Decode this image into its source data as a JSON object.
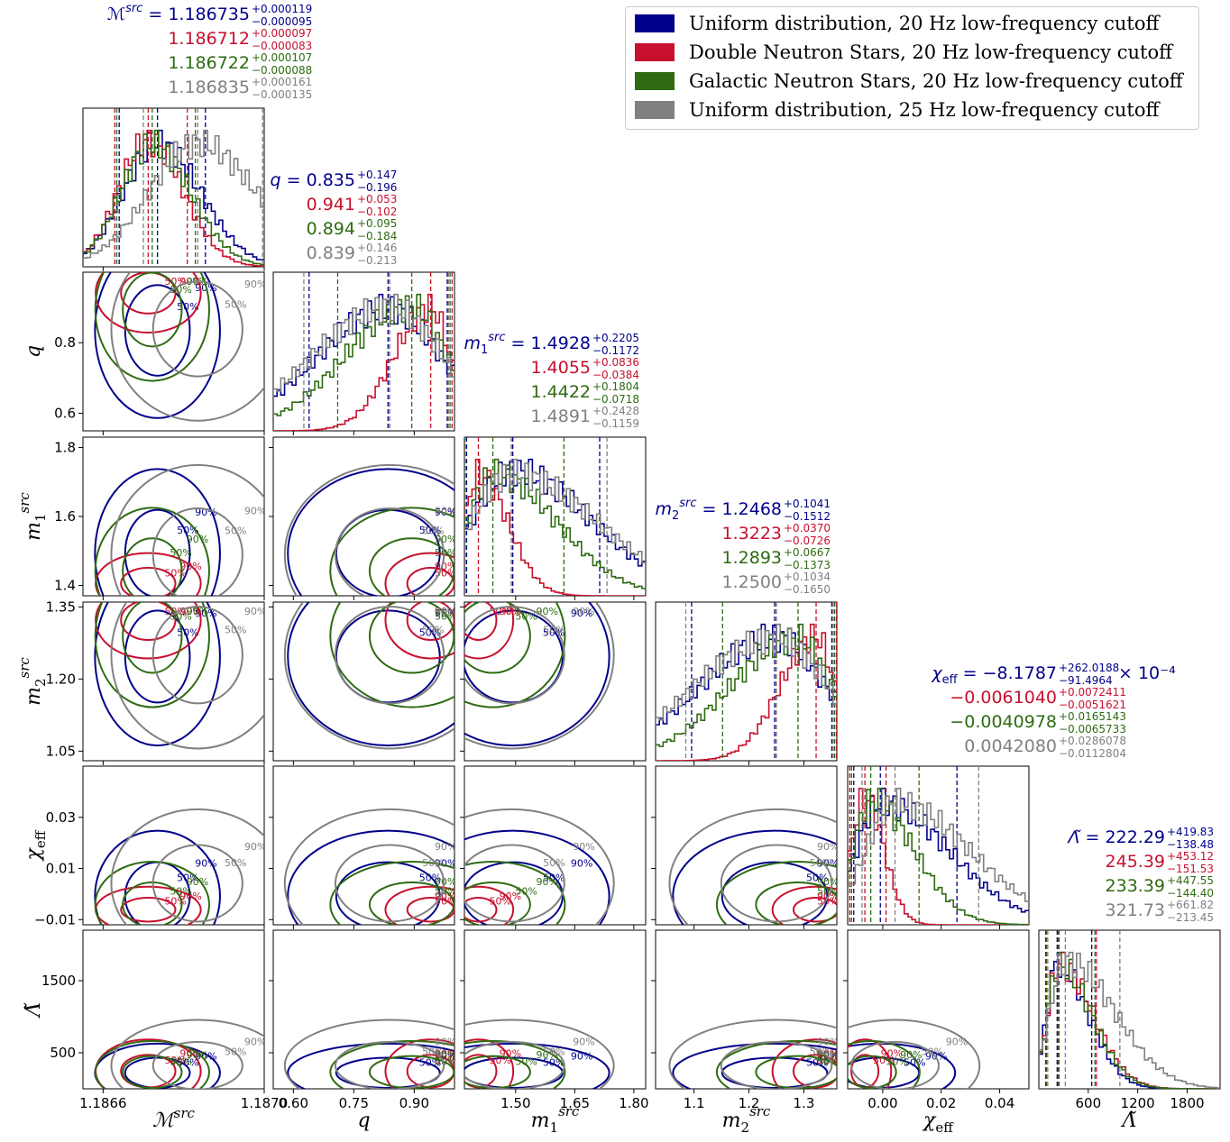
{
  "colors": {
    "uniform_20hz": "#00008b",
    "dns_20hz": "#c8102e",
    "galactic_20hz": "#2e6b12",
    "uniform_25hz": "#808080"
  },
  "legend": {
    "placement": "top-right",
    "items": [
      {
        "label": "Uniform distribution, 20 Hz low-frequency cutoff",
        "color": "#00008b"
      },
      {
        "label": "Double Neutron Stars, 20 Hz low-frequency cutoff",
        "color": "#c8102e"
      },
      {
        "label": "Galactic Neutron Stars, 20 Hz low-frequency cutoff",
        "color": "#2e6b12"
      },
      {
        "label": "Uniform distribution, 25 Hz low-frequency cutoff",
        "color": "#808080"
      }
    ]
  },
  "chart_data": {
    "type": "corner",
    "parameters": [
      {
        "key": "mc",
        "label": "ℳ",
        "sup": "src",
        "sub": "",
        "range": [
          1.18655,
          1.187
        ],
        "ticks": [
          1.1866,
          1.187
        ],
        "tick_labels": [
          "1.1866",
          "1.1870"
        ]
      },
      {
        "key": "q",
        "label": "q",
        "sup": "",
        "sub": "",
        "range": [
          0.55,
          1.0
        ],
        "ticks": [
          0.6,
          0.75,
          0.9
        ],
        "tick_labels": [
          "0.60",
          "0.75",
          "0.90"
        ],
        "yticks": [
          0.6,
          0.8
        ],
        "ytick_labels": [
          "0.6",
          "0.8"
        ]
      },
      {
        "key": "m1",
        "label": "m",
        "sup": "src",
        "sub": "1",
        "range": [
          1.37,
          1.83
        ],
        "ticks": [
          1.5,
          1.65,
          1.8
        ],
        "tick_labels": [
          "1.50",
          "1.65",
          "1.80"
        ],
        "yticks": [
          1.4,
          1.6,
          1.8
        ],
        "ytick_labels": [
          "1.4",
          "1.6",
          "1.8"
        ]
      },
      {
        "key": "m2",
        "label": "m",
        "sup": "src",
        "sub": "2",
        "range": [
          1.03,
          1.36
        ],
        "ticks": [
          1.1,
          1.2,
          1.3
        ],
        "tick_labels": [
          "1.1",
          "1.2",
          "1.3"
        ],
        "yticks": [
          1.05,
          1.2,
          1.35
        ],
        "ytick_labels": [
          "1.05",
          "1.20",
          "1.35"
        ]
      },
      {
        "key": "chi",
        "label": "χ",
        "sup": "",
        "sub": "eff",
        "range": [
          -0.012,
          0.05
        ],
        "ticks": [
          0.0,
          0.02,
          0.04
        ],
        "tick_labels": [
          "0.00",
          "0.02",
          "0.04"
        ],
        "yticks": [
          -0.01,
          0.01,
          0.03
        ],
        "ytick_labels": [
          "−0.01",
          "0.01",
          "0.03"
        ]
      },
      {
        "key": "lam",
        "label": "Λ̃",
        "sup": "",
        "sub": "",
        "range": [
          0,
          2200
        ],
        "ticks": [
          600,
          1200,
          1800
        ],
        "tick_labels": [
          "600",
          "1200",
          "1800"
        ],
        "yticks": [
          500,
          1500
        ],
        "ytick_labels": [
          "500",
          "1500"
        ]
      }
    ],
    "series": [
      {
        "name": "Uniform distribution, 20 Hz low-frequency cutoff",
        "color": "#00008b",
        "medians": [
          1.186735,
          0.835,
          1.4928,
          1.2468,
          -0.00081787,
          222.29
        ],
        "plus": [
          0.000119,
          0.147,
          0.2205,
          0.1041,
          0.0262,
          419.83
        ],
        "minus": [
          9.5e-05,
          0.196,
          0.1172,
          0.1512,
          0.0091,
          138.48
        ]
      },
      {
        "name": "Double Neutron Stars, 20 Hz low-frequency cutoff",
        "color": "#c8102e",
        "medians": [
          1.186712,
          0.941,
          1.4055,
          1.3223,
          -0.006104,
          245.39
        ],
        "plus": [
          9.7e-05,
          0.053,
          0.0836,
          0.037,
          0.0072411,
          453.12
        ],
        "minus": [
          8.3e-05,
          0.102,
          0.0384,
          0.0726,
          0.0051621,
          151.53
        ]
      },
      {
        "name": "Galactic Neutron Stars, 20 Hz low-frequency cutoff",
        "color": "#2e6b12",
        "medians": [
          1.186722,
          0.894,
          1.4422,
          1.2893,
          -0.0040978,
          233.39
        ],
        "plus": [
          0.000107,
          0.095,
          0.1804,
          0.0667,
          0.0165143,
          447.55
        ],
        "minus": [
          8.8e-05,
          0.184,
          0.0718,
          0.1373,
          0.0065733,
          144.4
        ]
      },
      {
        "name": "Uniform distribution, 25 Hz low-frequency cutoff",
        "color": "#808080",
        "medians": [
          1.186835,
          0.839,
          1.4891,
          1.25,
          0.004208,
          321.73
        ],
        "plus": [
          0.000161,
          0.146,
          0.2428,
          0.1034,
          0.0286078,
          661.82
        ],
        "minus": [
          0.000135,
          0.213,
          0.1159,
          0.165,
          0.0112804,
          213.45
        ]
      }
    ],
    "summary_text": [
      [
        {
          "prefix": "ℳ",
          "sup": "src",
          "sub": "",
          "value": "1.186735",
          "plus": "+0.000119",
          "minus": "−0.000095"
        },
        {
          "value": "1.186712",
          "plus": "+0.000097",
          "minus": "−0.000083"
        },
        {
          "value": "1.186722",
          "plus": "+0.000107",
          "minus": "−0.000088"
        },
        {
          "value": "1.186835",
          "plus": "+0.000161",
          "minus": "−0.000135"
        }
      ],
      [
        {
          "prefix": "q",
          "sup": "",
          "sub": "",
          "value": "0.835",
          "plus": "+0.147",
          "minus": "−0.196"
        },
        {
          "value": "0.941",
          "plus": "+0.053",
          "minus": "−0.102"
        },
        {
          "value": "0.894",
          "plus": "+0.095",
          "minus": "−0.184"
        },
        {
          "value": "0.839",
          "plus": "+0.146",
          "minus": "−0.213"
        }
      ],
      [
        {
          "prefix": "m",
          "sup": "src",
          "sub": "1",
          "value": "1.4928",
          "plus": "+0.2205",
          "minus": "−0.1172"
        },
        {
          "value": "1.4055",
          "plus": "+0.0836",
          "minus": "−0.0384"
        },
        {
          "value": "1.4422",
          "plus": "+0.1804",
          "minus": "−0.0718"
        },
        {
          "value": "1.4891",
          "plus": "+0.2428",
          "minus": "−0.1159"
        }
      ],
      [
        {
          "prefix": "m",
          "sup": "src",
          "sub": "2",
          "value": "1.2468",
          "plus": "+0.1041",
          "minus": "−0.1512"
        },
        {
          "value": "1.3223",
          "plus": "+0.0370",
          "minus": "−0.0726"
        },
        {
          "value": "1.2893",
          "plus": "+0.0667",
          "minus": "−0.1373"
        },
        {
          "value": "1.2500",
          "plus": "+0.1034",
          "minus": "−0.1650"
        }
      ],
      [
        {
          "prefix": "χ",
          "sup": "",
          "sub": "eff",
          "value": "−8.1787",
          "plus": "+262.0188",
          "minus": "−91.4964",
          "suffix": "× 10⁻⁴"
        },
        {
          "value": "−0.0061040",
          "plus": "+0.0072411",
          "minus": "−0.0051621"
        },
        {
          "value": "−0.0040978",
          "plus": "+0.0165143",
          "minus": "−0.0065733"
        },
        {
          "value": "0.0042080",
          "plus": "+0.0286078",
          "minus": "−0.0112804"
        }
      ],
      [
        {
          "prefix": "Λ̃",
          "sup": "",
          "sub": "",
          "value": "222.29",
          "plus": "+419.83",
          "minus": "−138.48"
        },
        {
          "value": "245.39",
          "plus": "+453.12",
          "minus": "−151.53"
        },
        {
          "value": "233.39",
          "plus": "+447.55",
          "minus": "−144.40"
        },
        {
          "value": "321.73",
          "plus": "+661.82",
          "minus": "−213.45"
        }
      ]
    ],
    "contour_levels": [
      "50%",
      "90%"
    ]
  }
}
